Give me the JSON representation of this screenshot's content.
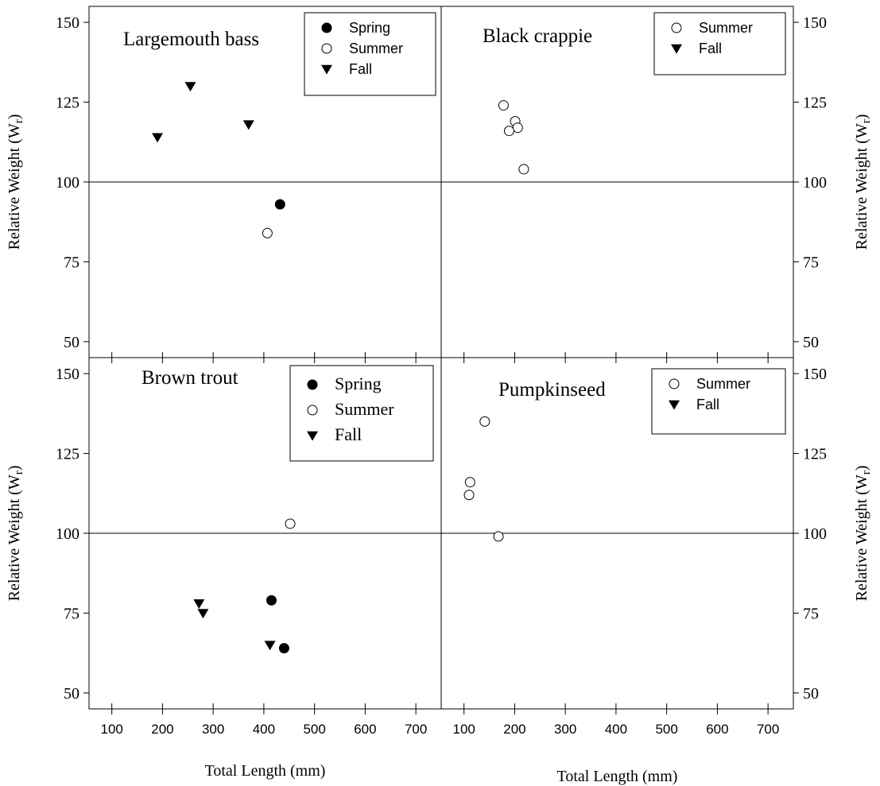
{
  "chart_data": [
    {
      "type": "scatter",
      "panel": "top-left",
      "title": "Largemouth bass",
      "xlabel": "",
      "ylabel": "Relative Weight (W",
      "ylabel_sub": "r",
      "ylabel_close": ")",
      "xlim": [
        55,
        750
      ],
      "ylim": [
        45,
        155
      ],
      "xticks": [
        "100",
        "200",
        "300",
        "400",
        "500",
        "600",
        "700"
      ],
      "yticks": [
        "50",
        "75",
        "100",
        "125",
        "150"
      ],
      "reference_line_y": 100,
      "legend": {
        "position": "top-right",
        "entries": [
          "Spring",
          "Summer",
          "Fall"
        ]
      },
      "series": [
        {
          "name": "Spring",
          "marker": "filled-circle",
          "points": [
            [
              432,
              93
            ]
          ]
        },
        {
          "name": "Summer",
          "marker": "open-circle",
          "points": [
            [
              407,
              84
            ]
          ]
        },
        {
          "name": "Fall",
          "marker": "triangle-down",
          "points": [
            [
              190,
              114
            ],
            [
              255,
              130
            ],
            [
              370,
              118
            ]
          ]
        }
      ]
    },
    {
      "type": "scatter",
      "panel": "top-right",
      "title": "Black crappie",
      "xlabel": "",
      "ylabel": "Relative Weight (W",
      "ylabel_sub": "r",
      "ylabel_close": ")",
      "xlim": [
        55,
        750
      ],
      "ylim": [
        45,
        155
      ],
      "xticks": [
        "100",
        "200",
        "300",
        "400",
        "500",
        "600",
        "700"
      ],
      "yticks": [
        "50",
        "75",
        "100",
        "125",
        "150"
      ],
      "reference_line_y": 100,
      "legend": {
        "position": "top-right",
        "entries": [
          "Summer",
          "Fall"
        ]
      },
      "series": [
        {
          "name": "Summer",
          "marker": "open-circle",
          "points": [
            [
              178,
              124
            ],
            [
              201,
              119
            ],
            [
              206,
              117
            ],
            [
              189,
              116
            ],
            [
              218,
              104
            ]
          ]
        },
        {
          "name": "Fall",
          "marker": "triangle-down",
          "points": []
        }
      ]
    },
    {
      "type": "scatter",
      "panel": "bottom-left",
      "title": "Brown trout",
      "xlabel": "Total Length (mm)",
      "ylabel": "Relative Weight (W",
      "ylabel_sub": "r",
      "ylabel_close": ")",
      "xlim": [
        55,
        750
      ],
      "ylim": [
        45,
        155
      ],
      "xticks": [
        "100",
        "200",
        "300",
        "400",
        "500",
        "600",
        "700"
      ],
      "yticks": [
        "50",
        "75",
        "100",
        "125",
        "150"
      ],
      "reference_line_y": 100,
      "legend": {
        "position": "top-right",
        "entries": [
          "Spring",
          "Summer",
          "Fall"
        ]
      },
      "series": [
        {
          "name": "Spring",
          "marker": "filled-circle",
          "points": [
            [
              415,
              79
            ],
            [
              440,
              64
            ]
          ]
        },
        {
          "name": "Summer",
          "marker": "open-circle",
          "points": [
            [
              452,
              103
            ]
          ]
        },
        {
          "name": "Fall",
          "marker": "triangle-down",
          "points": [
            [
              272,
              78
            ],
            [
              280,
              75
            ],
            [
              412,
              65
            ]
          ]
        }
      ]
    },
    {
      "type": "scatter",
      "panel": "bottom-right",
      "title": "Pumpkinseed",
      "xlabel": "Total Length (mm)",
      "ylabel": "Relative Weight (W",
      "ylabel_sub": "r",
      "ylabel_close": ")",
      "xlim": [
        55,
        750
      ],
      "ylim": [
        45,
        155
      ],
      "xticks": [
        "100",
        "200",
        "300",
        "400",
        "500",
        "600",
        "700"
      ],
      "yticks": [
        "50",
        "75",
        "100",
        "125",
        "150"
      ],
      "reference_line_y": 100,
      "legend": {
        "position": "top-right",
        "entries": [
          "Summer",
          "Fall"
        ]
      },
      "series": [
        {
          "name": "Summer",
          "marker": "open-circle",
          "points": [
            [
              141,
              135
            ],
            [
              112,
              116
            ],
            [
              110,
              112
            ],
            [
              168,
              99
            ]
          ]
        },
        {
          "name": "Fall",
          "marker": "triangle-down",
          "points": []
        }
      ]
    }
  ]
}
